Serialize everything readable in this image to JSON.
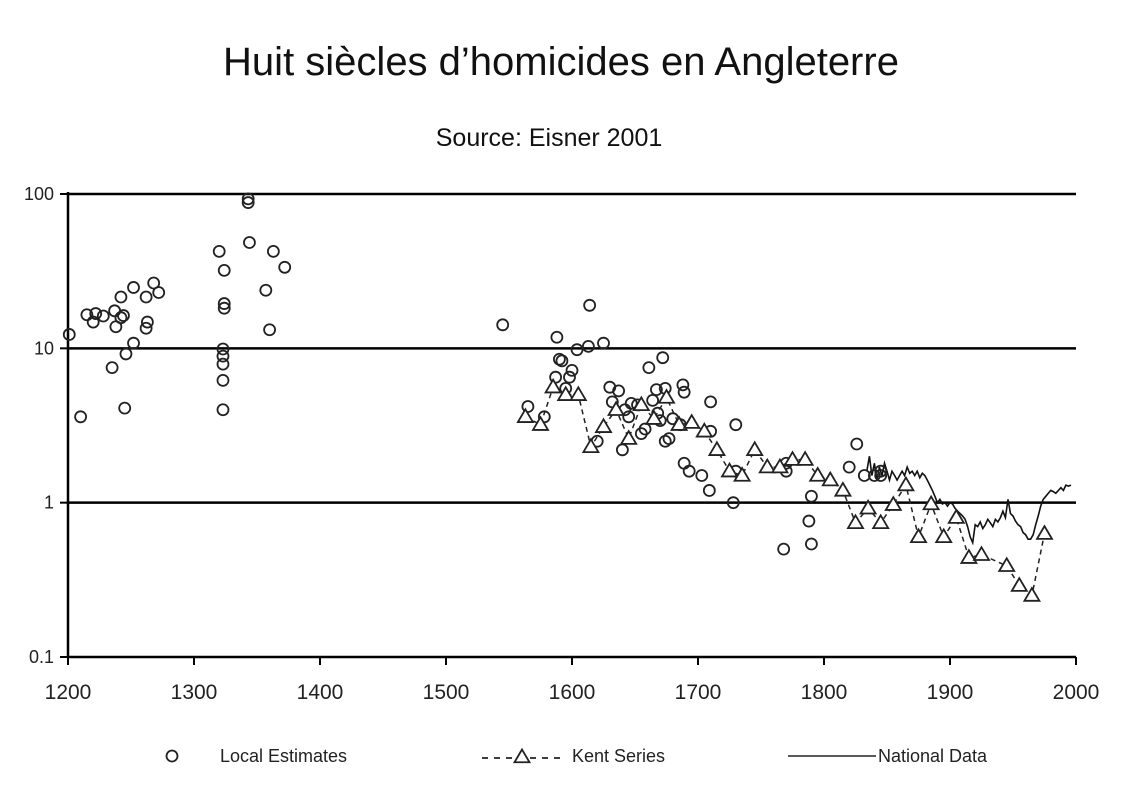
{
  "chart_data": {
    "type": "scatter",
    "title": "Huit siècles d’homicides en Angleterre",
    "subtitle": "Source: Eisner 2001",
    "xlabel": "",
    "ylabel": "",
    "xlim": [
      1200,
      2000
    ],
    "ylim": [
      0.1,
      100
    ],
    "yscale": "log",
    "x_ticks": [
      "1200",
      "1300",
      "1400",
      "1500",
      "1600",
      "1700",
      "1800",
      "1900",
      "2000"
    ],
    "y_ticks": [
      "100",
      "10",
      "1",
      "0.1"
    ],
    "grid": "horizontal major lines at 1, 10, 100",
    "legend_position": "bottom",
    "series": [
      {
        "name": "Local Estimates",
        "marker": "circle",
        "points": [
          [
            1201,
            12.3
          ],
          [
            1210,
            3.6
          ],
          [
            1215,
            16.5
          ],
          [
            1220,
            14.8
          ],
          [
            1222,
            16.8
          ],
          [
            1228,
            16.2
          ],
          [
            1235,
            7.5
          ],
          [
            1237,
            17.5
          ],
          [
            1238,
            13.8
          ],
          [
            1242,
            15.8
          ],
          [
            1242,
            21.5
          ],
          [
            1244,
            16.3
          ],
          [
            1245,
            4.1
          ],
          [
            1246,
            9.2
          ],
          [
            1252,
            10.8
          ],
          [
            1252,
            24.8
          ],
          [
            1262,
            13.5
          ],
          [
            1262,
            21.5
          ],
          [
            1263,
            14.8
          ],
          [
            1268,
            26.5
          ],
          [
            1272,
            23.0
          ],
          [
            1320,
            42.5
          ],
          [
            1323,
            6.2
          ],
          [
            1323,
            4.0
          ],
          [
            1323,
            7.9
          ],
          [
            1323,
            8.9
          ],
          [
            1323,
            9.9
          ],
          [
            1324,
            32.0
          ],
          [
            1324,
            18.2
          ],
          [
            1324,
            19.5
          ],
          [
            1343,
            88
          ],
          [
            1343,
            93
          ],
          [
            1344,
            48.5
          ],
          [
            1357,
            23.8
          ],
          [
            1360,
            13.2
          ],
          [
            1363,
            42.5
          ],
          [
            1372,
            33.5
          ],
          [
            1545,
            14.2
          ],
          [
            1565,
            4.2
          ],
          [
            1578,
            3.6
          ],
          [
            1588,
            11.8
          ],
          [
            1587,
            6.5
          ],
          [
            1590,
            8.5
          ],
          [
            1592,
            8.3
          ],
          [
            1595,
            5.5
          ],
          [
            1598,
            6.5
          ],
          [
            1600,
            7.2
          ],
          [
            1604,
            9.8
          ],
          [
            1613,
            10.3
          ],
          [
            1614,
            19.0
          ],
          [
            1620,
            2.5
          ],
          [
            1625,
            10.8
          ],
          [
            1630,
            5.6
          ],
          [
            1632,
            4.5
          ],
          [
            1637,
            5.3
          ],
          [
            1640,
            2.2
          ],
          [
            1642,
            4.0
          ],
          [
            1645,
            3.6
          ],
          [
            1647,
            4.4
          ],
          [
            1652,
            4.3
          ],
          [
            1655,
            2.8
          ],
          [
            1658,
            3.0
          ],
          [
            1661,
            7.5
          ],
          [
            1664,
            4.6
          ],
          [
            1667,
            5.4
          ],
          [
            1668,
            3.8
          ],
          [
            1670,
            3.4
          ],
          [
            1672,
            8.7
          ],
          [
            1674,
            5.5
          ],
          [
            1674,
            2.5
          ],
          [
            1677,
            2.6
          ],
          [
            1680,
            3.5
          ],
          [
            1686,
            3.2
          ],
          [
            1688,
            5.8
          ],
          [
            1689,
            5.2
          ],
          [
            1689,
            1.8
          ],
          [
            1693,
            1.6
          ],
          [
            1703,
            1.5
          ],
          [
            1710,
            4.5
          ],
          [
            1709,
            1.2
          ],
          [
            1710,
            2.9
          ],
          [
            1728,
            1.0
          ],
          [
            1730,
            3.2
          ],
          [
            1730,
            1.6
          ],
          [
            1768,
            0.5
          ],
          [
            1770,
            1.6
          ],
          [
            1770,
            1.8
          ],
          [
            1788,
            0.76
          ],
          [
            1790,
            1.1
          ],
          [
            1790,
            0.54
          ],
          [
            1820,
            1.7
          ],
          [
            1826,
            2.4
          ],
          [
            1832,
            1.5
          ],
          [
            1840,
            1.5
          ],
          [
            1845,
            1.5
          ],
          [
            1845,
            1.6
          ]
        ]
      },
      {
        "name": "Kent Series",
        "marker": "triangle",
        "line": "dashed",
        "points": [
          [
            1563,
            3.6
          ],
          [
            1575,
            3.2
          ],
          [
            1585,
            5.6
          ],
          [
            1595,
            5.0
          ],
          [
            1605,
            5.0
          ],
          [
            1615,
            2.3
          ],
          [
            1625,
            3.1
          ],
          [
            1635,
            4.0
          ],
          [
            1645,
            2.6
          ],
          [
            1655,
            4.3
          ],
          [
            1665,
            3.5
          ],
          [
            1675,
            4.8
          ],
          [
            1685,
            3.2
          ],
          [
            1695,
            3.3
          ],
          [
            1705,
            2.9
          ],
          [
            1715,
            2.2
          ],
          [
            1725,
            1.6
          ],
          [
            1735,
            1.5
          ],
          [
            1745,
            2.2
          ],
          [
            1755,
            1.7
          ],
          [
            1765,
            1.7
          ],
          [
            1775,
            1.9
          ],
          [
            1785,
            1.9
          ],
          [
            1795,
            1.5
          ],
          [
            1805,
            1.4
          ],
          [
            1815,
            1.2
          ],
          [
            1825,
            0.74
          ],
          [
            1835,
            0.92
          ],
          [
            1845,
            0.74
          ],
          [
            1855,
            0.97
          ],
          [
            1865,
            1.3
          ],
          [
            1875,
            0.6
          ],
          [
            1885,
            0.98
          ],
          [
            1895,
            0.6
          ],
          [
            1905,
            0.8
          ],
          [
            1915,
            0.44
          ],
          [
            1925,
            0.46
          ],
          [
            1945,
            0.39
          ],
          [
            1955,
            0.29
          ],
          [
            1965,
            0.25
          ],
          [
            1975,
            0.63
          ]
        ]
      },
      {
        "name": "National Data",
        "marker": "none",
        "line": "solid",
        "points": [
          [
            1834,
            1.6
          ],
          [
            1836,
            2.0
          ],
          [
            1838,
            1.5
          ],
          [
            1840,
            1.8
          ],
          [
            1842,
            1.4
          ],
          [
            1844,
            1.7
          ],
          [
            1846,
            1.5
          ],
          [
            1848,
            1.8
          ],
          [
            1850,
            1.6
          ],
          [
            1852,
            1.4
          ],
          [
            1854,
            1.6
          ],
          [
            1856,
            1.5
          ],
          [
            1858,
            1.4
          ],
          [
            1860,
            1.5
          ],
          [
            1862,
            1.6
          ],
          [
            1864,
            1.5
          ],
          [
            1866,
            1.7
          ],
          [
            1868,
            1.55
          ],
          [
            1870,
            1.6
          ],
          [
            1872,
            1.5
          ],
          [
            1874,
            1.6
          ],
          [
            1876,
            1.45
          ],
          [
            1878,
            1.55
          ],
          [
            1880,
            1.5
          ],
          [
            1882,
            1.4
          ],
          [
            1884,
            1.3
          ],
          [
            1886,
            1.2
          ],
          [
            1888,
            1.1
          ],
          [
            1890,
            1.0
          ],
          [
            1892,
            1.05
          ],
          [
            1894,
            0.98
          ],
          [
            1896,
            1.0
          ],
          [
            1898,
            0.95
          ],
          [
            1900,
            1.0
          ],
          [
            1902,
            0.98
          ],
          [
            1904,
            0.92
          ],
          [
            1906,
            0.88
          ],
          [
            1908,
            0.85
          ],
          [
            1910,
            0.82
          ],
          [
            1912,
            0.78
          ],
          [
            1914,
            0.7
          ],
          [
            1916,
            0.6
          ],
          [
            1918,
            0.55
          ],
          [
            1920,
            0.72
          ],
          [
            1922,
            0.7
          ],
          [
            1924,
            0.75
          ],
          [
            1926,
            0.68
          ],
          [
            1928,
            0.72
          ],
          [
            1930,
            0.78
          ],
          [
            1932,
            0.74
          ],
          [
            1934,
            0.7
          ],
          [
            1936,
            0.78
          ],
          [
            1938,
            0.75
          ],
          [
            1940,
            0.8
          ],
          [
            1942,
            0.88
          ],
          [
            1944,
            0.8
          ],
          [
            1946,
            1.05
          ],
          [
            1948,
            0.85
          ],
          [
            1950,
            0.82
          ],
          [
            1952,
            0.76
          ],
          [
            1954,
            0.72
          ],
          [
            1956,
            0.7
          ],
          [
            1958,
            0.64
          ],
          [
            1960,
            0.62
          ],
          [
            1962,
            0.58
          ],
          [
            1964,
            0.58
          ],
          [
            1966,
            0.62
          ],
          [
            1968,
            0.72
          ],
          [
            1970,
            0.82
          ],
          [
            1972,
            0.95
          ],
          [
            1974,
            1.05
          ],
          [
            1976,
            1.1
          ],
          [
            1978,
            1.15
          ],
          [
            1980,
            1.2
          ],
          [
            1982,
            1.18
          ],
          [
            1984,
            1.15
          ],
          [
            1986,
            1.2
          ],
          [
            1988,
            1.25
          ],
          [
            1990,
            1.2
          ],
          [
            1992,
            1.3
          ],
          [
            1994,
            1.28
          ],
          [
            1996,
            1.3
          ]
        ]
      }
    ]
  }
}
